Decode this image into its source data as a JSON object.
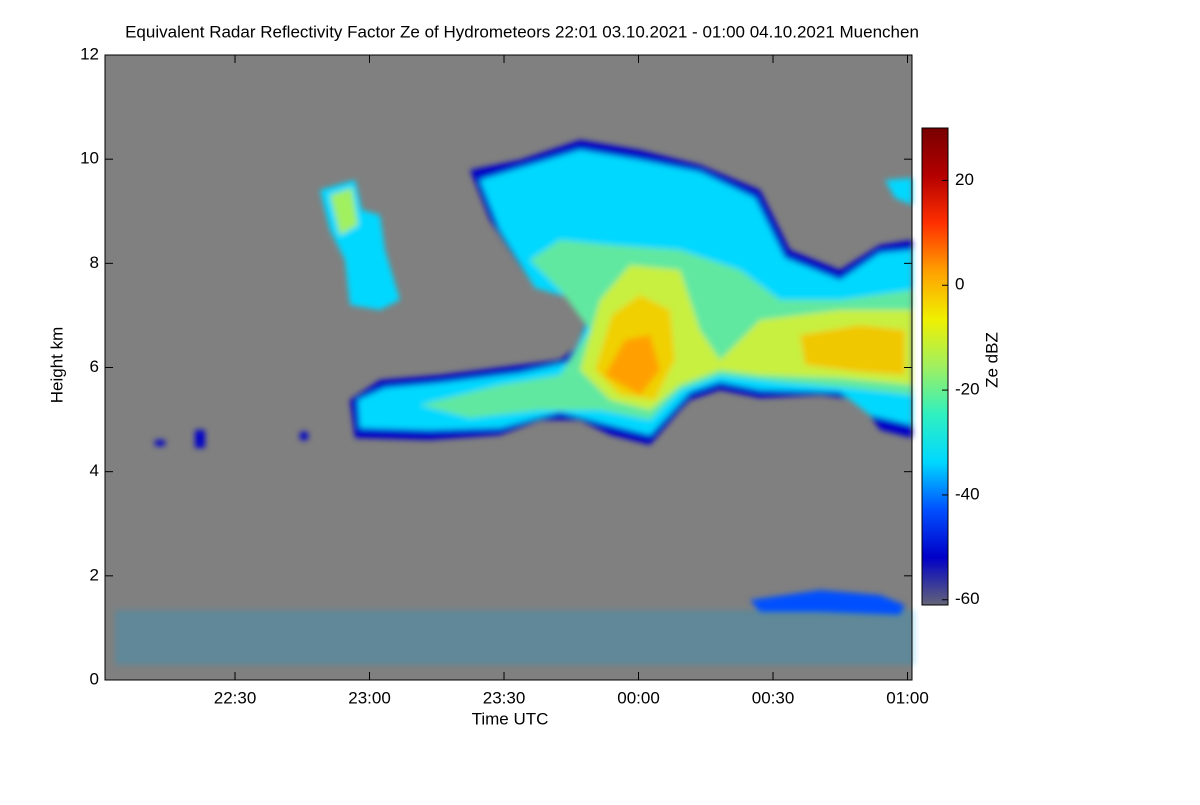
{
  "chart_data": {
    "type": "heatmap",
    "title": "Equivalent Radar Reflectivity Factor Ze of Hydrometeors   22:01 03.10.2021 - 01:00 04.10.2021 Muenchen",
    "x_label": "Time UTC",
    "y_label": "Height km",
    "xlim": [
      1,
      181
    ],
    "xticks": [
      {
        "value": 30,
        "label": "22:30"
      },
      {
        "value": 60,
        "label": "23:00"
      },
      {
        "value": 90,
        "label": "23:30"
      },
      {
        "value": 120,
        "label": "00:00"
      },
      {
        "value": 150,
        "label": "00:30"
      },
      {
        "value": 180,
        "label": "01:00"
      }
    ],
    "ylim": [
      0,
      12
    ],
    "yticks": [
      0,
      2,
      4,
      6,
      8,
      10,
      12
    ],
    "colorbar": {
      "label": "Ze dBZ",
      "lim": [
        -61,
        30
      ],
      "ticks": [
        -60,
        -40,
        -20,
        0,
        20
      ],
      "colors": [
        "#646478",
        "#0000c8",
        "#0050ff",
        "#00d8ff",
        "#30f0c0",
        "#a0f060",
        "#f0f000",
        "#ffa000",
        "#ff3000",
        "#b40000",
        "#780000"
      ]
    },
    "background": "#808080"
  }
}
